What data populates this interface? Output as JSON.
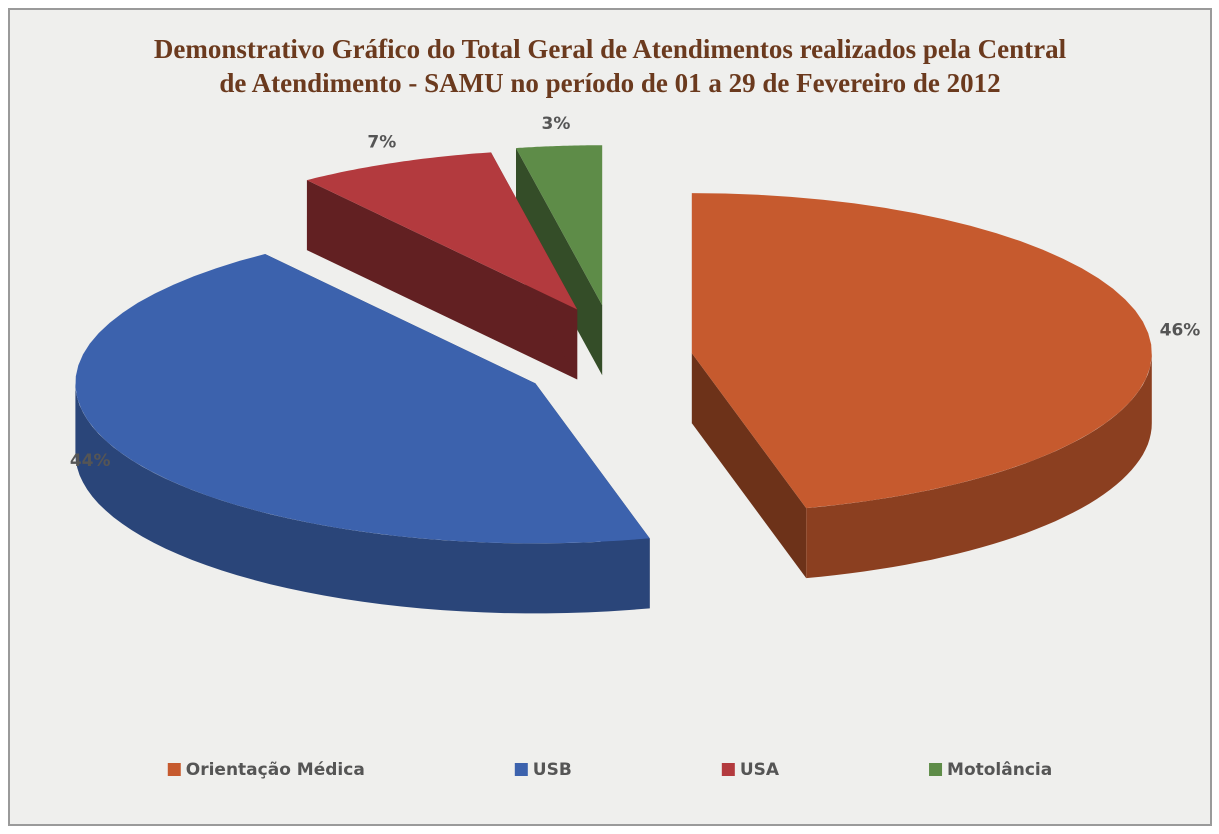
{
  "chart_data": {
    "type": "pie",
    "title": "Demonstrativo Gráfico do Total Geral de Atendimentos realizados pela Central de Atendimento - SAMU no período de 01 a 29 de Fevereiro de 2012",
    "categories": [
      "Orientação Médica",
      "USB",
      "USA",
      "Motolância"
    ],
    "values": [
      46,
      44,
      7,
      3
    ],
    "value_labels": [
      "46%",
      "44%",
      "7%",
      "3%"
    ],
    "colors": [
      "#c65a2e",
      "#3c62ad",
      "#b33a3e",
      "#5e8c48"
    ],
    "legend": "bottom"
  }
}
